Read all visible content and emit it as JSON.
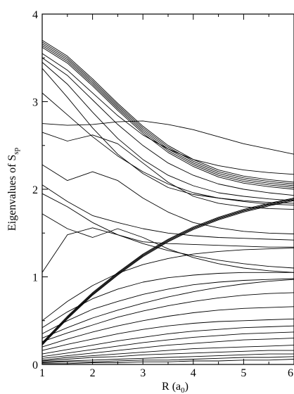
{
  "chart_data": {
    "type": "line",
    "title": "",
    "xlabel": {
      "main": "R (a",
      "sub": "0",
      "end": ")"
    },
    "ylabel": {
      "main": "Eigenvalues of S",
      "sub": "sp"
    },
    "xlim": [
      1,
      6
    ],
    "ylim": [
      0,
      4
    ],
    "xticks": [
      "1",
      "2",
      "3",
      "4",
      "5",
      "6"
    ],
    "yticks": [
      "0",
      "1",
      "2",
      "3",
      "4"
    ],
    "grid": false,
    "legend": "none",
    "line_color": "#000000",
    "x": [
      1.0,
      1.5,
      2.0,
      2.5,
      3.0,
      3.5,
      4.0,
      4.5,
      5.0,
      5.5,
      6.0
    ],
    "series": [
      {
        "values": [
          3.7,
          3.52,
          3.26,
          2.98,
          2.72,
          2.5,
          2.34,
          2.22,
          2.15,
          2.11,
          2.08
        ]
      },
      {
        "values": [
          3.68,
          3.5,
          3.24,
          2.96,
          2.7,
          2.48,
          2.32,
          2.2,
          2.13,
          2.09,
          2.06
        ]
      },
      {
        "values": [
          3.66,
          3.48,
          3.22,
          2.94,
          2.68,
          2.46,
          2.3,
          2.18,
          2.11,
          2.07,
          2.04
        ]
      },
      {
        "values": [
          3.64,
          3.46,
          3.2,
          2.92,
          2.66,
          2.44,
          2.28,
          2.16,
          2.09,
          2.05,
          2.02
        ]
      },
      {
        "values": [
          3.62,
          3.44,
          3.18,
          2.9,
          2.64,
          2.42,
          2.26,
          2.14,
          2.07,
          2.03,
          2.0
        ]
      },
      {
        "values": [
          3.55,
          3.36,
          3.1,
          2.84,
          2.62,
          2.46,
          2.34,
          2.27,
          2.22,
          2.19,
          2.17
        ]
      },
      {
        "values": [
          3.5,
          3.3,
          3.02,
          2.74,
          2.5,
          2.3,
          2.16,
          2.06,
          2.0,
          1.96,
          1.93
        ]
      },
      {
        "values": [
          3.45,
          3.2,
          2.88,
          2.58,
          2.34,
          2.16,
          2.04,
          1.96,
          1.92,
          1.89,
          1.87
        ]
      },
      {
        "values": [
          3.38,
          3.05,
          2.7,
          2.4,
          2.18,
          2.02,
          1.94,
          1.9,
          1.87,
          1.85,
          1.84
        ]
      },
      {
        "values": [
          3.1,
          2.85,
          2.6,
          2.38,
          2.2,
          2.06,
          1.96,
          1.9,
          1.86,
          1.83,
          1.82
        ]
      },
      {
        "values": [
          2.75,
          2.73,
          2.74,
          2.77,
          2.78,
          2.74,
          2.68,
          2.6,
          2.52,
          2.46,
          2.4
        ]
      },
      {
        "values": [
          2.65,
          2.55,
          2.62,
          2.52,
          2.3,
          2.08,
          1.92,
          1.84,
          1.8,
          1.78,
          1.77
        ]
      },
      {
        "values": [
          2.28,
          2.1,
          2.2,
          2.1,
          1.9,
          1.74,
          1.62,
          1.56,
          1.52,
          1.5,
          1.49
        ]
      },
      {
        "values": [
          2.05,
          1.86,
          1.7,
          1.62,
          1.55,
          1.5,
          1.47,
          1.45,
          1.44,
          1.43,
          1.42
        ]
      },
      {
        "values": [
          1.95,
          1.8,
          1.62,
          1.48,
          1.38,
          1.3,
          1.24,
          1.19,
          1.15,
          1.12,
          1.1
        ]
      },
      {
        "values": [
          1.72,
          1.55,
          1.45,
          1.55,
          1.45,
          1.32,
          1.22,
          1.15,
          1.1,
          1.07,
          1.05
        ]
      },
      {
        "values": [
          1.05,
          1.48,
          1.56,
          1.48,
          1.4,
          1.38,
          1.37,
          1.36,
          1.35,
          1.34,
          1.34
        ]
      },
      {
        "values": [
          0.25,
          0.55,
          0.82,
          1.05,
          1.26,
          1.43,
          1.57,
          1.68,
          1.77,
          1.84,
          1.9
        ]
      },
      {
        "values": [
          0.24,
          0.54,
          0.81,
          1.04,
          1.25,
          1.42,
          1.56,
          1.67,
          1.76,
          1.83,
          1.89
        ]
      },
      {
        "values": [
          0.23,
          0.53,
          0.8,
          1.03,
          1.24,
          1.41,
          1.55,
          1.66,
          1.75,
          1.82,
          1.88
        ]
      },
      {
        "values": [
          0.22,
          0.52,
          0.79,
          1.02,
          1.23,
          1.4,
          1.54,
          1.65,
          1.74,
          1.81,
          1.87
        ]
      },
      {
        "values": [
          0.5,
          0.72,
          0.9,
          1.04,
          1.14,
          1.21,
          1.26,
          1.29,
          1.31,
          1.32,
          1.33
        ]
      },
      {
        "values": [
          0.42,
          0.6,
          0.75,
          0.86,
          0.94,
          0.99,
          1.02,
          1.04,
          1.05,
          1.05,
          1.05
        ]
      },
      {
        "values": [
          0.35,
          0.5,
          0.63,
          0.72,
          0.8,
          0.86,
          0.91,
          0.94,
          0.96,
          0.97,
          0.98
        ]
      },
      {
        "values": [
          0.3,
          0.42,
          0.53,
          0.62,
          0.7,
          0.77,
          0.83,
          0.88,
          0.92,
          0.95,
          0.97
        ]
      },
      {
        "values": [
          0.26,
          0.36,
          0.45,
          0.54,
          0.61,
          0.67,
          0.72,
          0.76,
          0.79,
          0.81,
          0.82
        ]
      },
      {
        "values": [
          0.2,
          0.29,
          0.37,
          0.44,
          0.5,
          0.55,
          0.59,
          0.62,
          0.64,
          0.65,
          0.66
        ]
      },
      {
        "values": [
          0.16,
          0.23,
          0.29,
          0.35,
          0.4,
          0.44,
          0.47,
          0.49,
          0.5,
          0.51,
          0.52
        ]
      },
      {
        "values": [
          0.12,
          0.17,
          0.22,
          0.27,
          0.31,
          0.35,
          0.38,
          0.4,
          0.42,
          0.43,
          0.44
        ]
      },
      {
        "values": [
          0.09,
          0.13,
          0.17,
          0.21,
          0.25,
          0.28,
          0.31,
          0.33,
          0.35,
          0.36,
          0.37
        ]
      },
      {
        "values": [
          0.07,
          0.1,
          0.13,
          0.16,
          0.19,
          0.22,
          0.24,
          0.26,
          0.28,
          0.29,
          0.3
        ]
      },
      {
        "values": [
          0.05,
          0.08,
          0.1,
          0.12,
          0.14,
          0.16,
          0.18,
          0.19,
          0.2,
          0.21,
          0.22
        ]
      },
      {
        "values": [
          0.04,
          0.06,
          0.08,
          0.09,
          0.11,
          0.12,
          0.13,
          0.14,
          0.15,
          0.16,
          0.16
        ]
      },
      {
        "values": [
          0.03,
          0.04,
          0.05,
          0.06,
          0.07,
          0.08,
          0.09,
          0.1,
          0.11,
          0.12,
          0.12
        ]
      },
      {
        "values": [
          0.02,
          0.03,
          0.03,
          0.04,
          0.05,
          0.05,
          0.06,
          0.07,
          0.08,
          0.08,
          0.09
        ]
      },
      {
        "values": [
          0.01,
          0.01,
          0.02,
          0.02,
          0.03,
          0.03,
          0.04,
          0.04,
          0.05,
          0.05,
          0.06
        ]
      }
    ]
  }
}
